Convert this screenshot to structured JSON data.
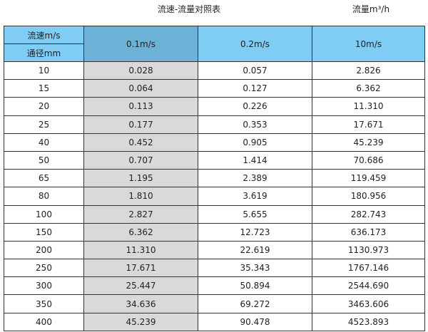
{
  "title": "流速-流量对照表",
  "unit_label": "流量m³/h",
  "header": {
    "velocity_label": "流速m/s",
    "diameter_label": "通径mm",
    "columns": [
      "0.1m/s",
      "0.2m/s",
      "10m/s"
    ]
  },
  "colors": {
    "header": "#7fcdf4",
    "header_highlight": "#6cb2d6",
    "column_highlight": "#d9d9d9"
  },
  "rows": [
    [
      "10",
      "0.028",
      "0.057",
      "2.826"
    ],
    [
      "15",
      "0.064",
      "0.127",
      "6.362"
    ],
    [
      "20",
      "0.113",
      "0.226",
      "11.310"
    ],
    [
      "25",
      "0.177",
      "0.353",
      "17.671"
    ],
    [
      "40",
      "0.452",
      "0.905",
      "45.239"
    ],
    [
      "50",
      "0.707",
      "1.414",
      "70.686"
    ],
    [
      "65",
      "1.195",
      "2.389",
      "119.459"
    ],
    [
      "80",
      "1.810",
      "3.619",
      "180.956"
    ],
    [
      "100",
      "2.827",
      "5.655",
      "282.743"
    ],
    [
      "150",
      "6.362",
      "12.723",
      "636.173"
    ],
    [
      "200",
      "11.310",
      "22.619",
      "1130.973"
    ],
    [
      "250",
      "17.671",
      "35.343",
      "1767.146"
    ],
    [
      "300",
      "25.447",
      "50.894",
      "2544.690"
    ],
    [
      "350",
      "34.636",
      "69.272",
      "3463.606"
    ],
    [
      "400",
      "45.239",
      "90.478",
      "4523.893"
    ]
  ]
}
